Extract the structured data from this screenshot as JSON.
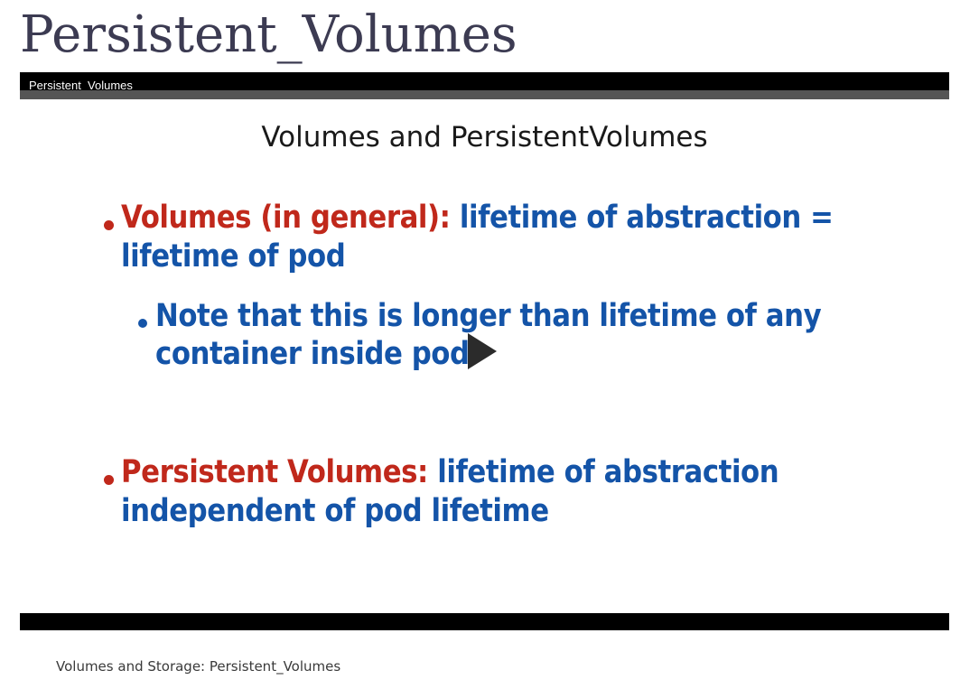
{
  "page": {
    "title": "Persistent_Volumes",
    "caption": "Volumes and Storage: Persistent_Volumes"
  },
  "player": {
    "title": "Persistent_Volumes",
    "play_icon": "play-icon"
  },
  "slide": {
    "heading": "Volumes and PersistentVolumes",
    "bullets": [
      {
        "term": "Volumes (in general):",
        "line1": "lifetime of abstraction =",
        "line2": "lifetime of pod",
        "sub": {
          "line1": "Note that this is longer than lifetime of any",
          "line2": "container inside pod"
        }
      },
      {
        "term": "Persistent Volumes:",
        "line1": "lifetime of abstraction",
        "line2": "independent of pod lifetime"
      }
    ]
  },
  "colors": {
    "term": "#c0281b",
    "body": "#1454a8",
    "title": "#3c3b52"
  }
}
